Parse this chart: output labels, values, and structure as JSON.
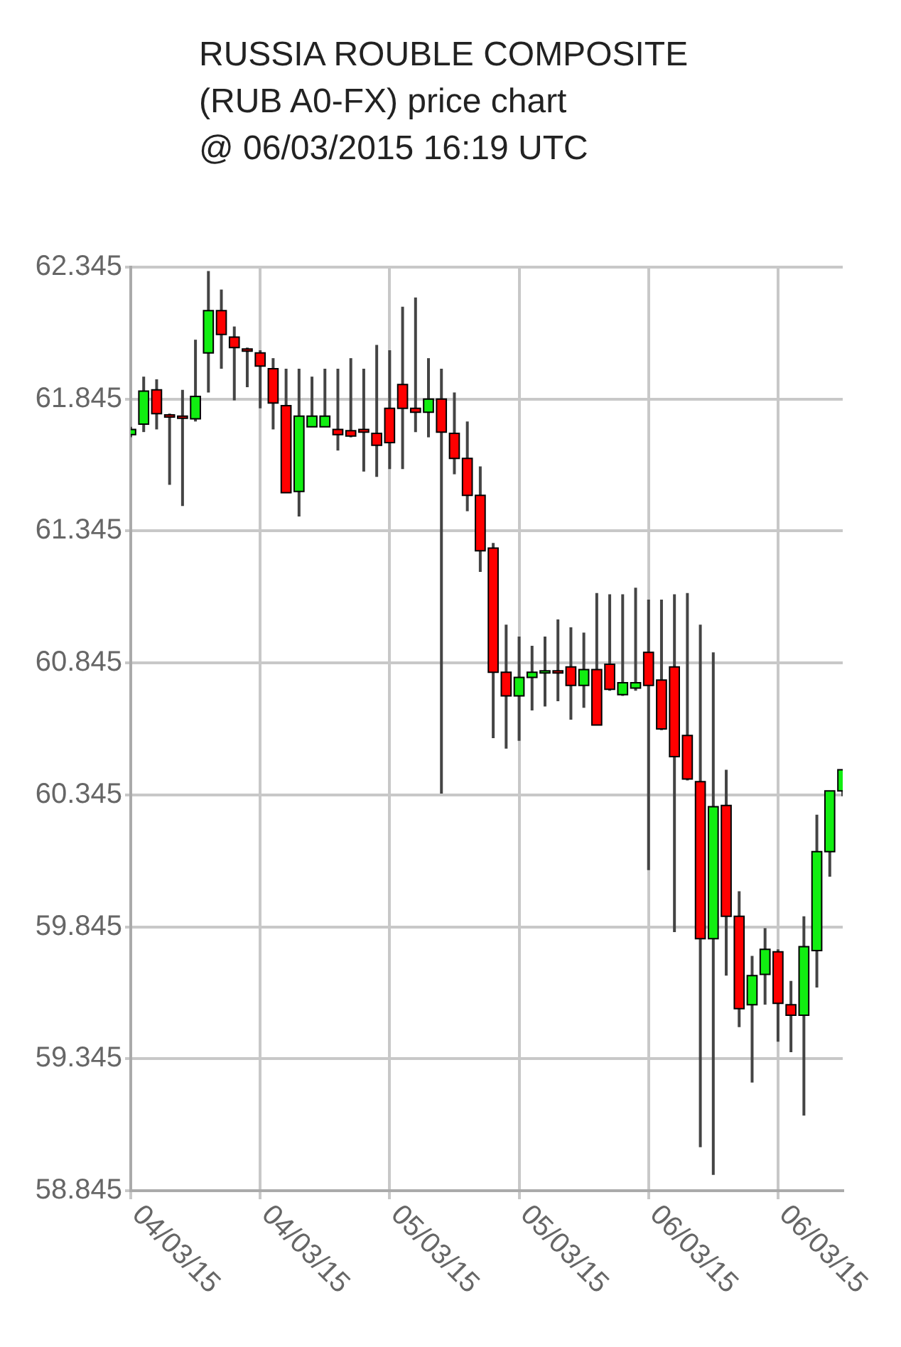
{
  "chart_data": {
    "type": "candlestick",
    "title": "RUSSIA ROUBLE COMPOSITE\n(RUB A0-FX) price chart\n@ 06/03/2015 16:19 UTC",
    "x": [
      "2015-03-04T00:00",
      "2015-03-04T01:12",
      "2015-03-04T02:24",
      "2015-03-04T03:36",
      "2015-03-04T04:48",
      "2015-03-04T06:00",
      "2015-03-04T07:12",
      "2015-03-04T08:24",
      "2015-03-04T09:36",
      "2015-03-04T10:48",
      "2015-03-04T12:00",
      "2015-03-04T13:12",
      "2015-03-04T14:24",
      "2015-03-04T15:36",
      "2015-03-04T16:48",
      "2015-03-04T18:00",
      "2015-03-04T19:12",
      "2015-03-04T20:24",
      "2015-03-04T21:36",
      "2015-03-04T22:48",
      "2015-03-05T00:00",
      "2015-03-05T01:12",
      "2015-03-05T02:24",
      "2015-03-05T03:36",
      "2015-03-05T04:48",
      "2015-03-05T06:00",
      "2015-03-05T07:12",
      "2015-03-05T08:24",
      "2015-03-05T09:36",
      "2015-03-05T10:48",
      "2015-03-05T12:00",
      "2015-03-05T13:12",
      "2015-03-05T14:24",
      "2015-03-05T15:36",
      "2015-03-05T16:48",
      "2015-03-05T18:00",
      "2015-03-05T19:12",
      "2015-03-05T20:24",
      "2015-03-05T21:36",
      "2015-03-05T22:48",
      "2015-03-06T00:00",
      "2015-03-06T01:12",
      "2015-03-06T02:24",
      "2015-03-06T03:36",
      "2015-03-06T04:48",
      "2015-03-06T06:00",
      "2015-03-06T07:12",
      "2015-03-06T08:24",
      "2015-03-06T09:36",
      "2015-03-06T10:48",
      "2015-03-06T12:00",
      "2015-03-06T13:12",
      "2015-03-06T14:24",
      "2015-03-06T15:36",
      "2015-03-06T16:48",
      "2015-03-06T18:00"
    ],
    "ohlc": [
      [
        61.71,
        61.74,
        61.7,
        61.73
      ],
      [
        61.75,
        61.93,
        61.72,
        61.875
      ],
      [
        61.88,
        61.92,
        61.73,
        61.79
      ],
      [
        61.785,
        61.79,
        61.52,
        61.78
      ],
      [
        61.78,
        61.88,
        61.44,
        61.775
      ],
      [
        61.77,
        62.07,
        61.76,
        61.855
      ],
      [
        62.02,
        62.33,
        61.87,
        62.18
      ],
      [
        62.18,
        62.26,
        61.96,
        62.09
      ],
      [
        62.08,
        62.12,
        61.84,
        62.04
      ],
      [
        62.035,
        62.04,
        61.89,
        62.03
      ],
      [
        62.02,
        62.03,
        61.81,
        61.97
      ],
      [
        61.96,
        62.0,
        61.73,
        61.83
      ],
      [
        61.82,
        61.96,
        61.49,
        61.49
      ],
      [
        61.495,
        61.96,
        61.4,
        61.78
      ],
      [
        61.74,
        61.93,
        61.74,
        61.78
      ],
      [
        61.74,
        61.96,
        61.74,
        61.78
      ],
      [
        61.73,
        61.96,
        61.65,
        61.71
      ],
      [
        61.725,
        62.0,
        61.7,
        61.705
      ],
      [
        61.73,
        61.96,
        61.57,
        61.72
      ],
      [
        61.715,
        62.05,
        61.55,
        61.67
      ],
      [
        61.81,
        62.03,
        61.58,
        61.68
      ],
      [
        61.9,
        62.195,
        61.58,
        61.81
      ],
      [
        61.81,
        62.23,
        61.72,
        61.795
      ],
      [
        61.795,
        62.0,
        61.7,
        61.845
      ],
      [
        61.845,
        61.96,
        60.35,
        61.72
      ],
      [
        61.715,
        61.87,
        61.56,
        61.62
      ],
      [
        61.62,
        61.76,
        61.42,
        61.48
      ],
      [
        61.48,
        61.59,
        61.19,
        61.27
      ],
      [
        61.28,
        61.3,
        60.56,
        60.81
      ],
      [
        60.81,
        60.99,
        60.52,
        60.72
      ],
      [
        60.72,
        60.945,
        60.55,
        60.79
      ],
      [
        60.79,
        60.91,
        60.665,
        60.81
      ],
      [
        60.81,
        60.945,
        60.68,
        60.815
      ],
      [
        60.815,
        61.01,
        60.7,
        60.81
      ],
      [
        60.83,
        60.98,
        60.63,
        60.76
      ],
      [
        60.76,
        60.96,
        60.675,
        60.82
      ],
      [
        60.82,
        61.11,
        60.61,
        60.61
      ],
      [
        60.84,
        61.105,
        60.74,
        60.745
      ],
      [
        60.725,
        61.105,
        60.72,
        60.77
      ],
      [
        60.75,
        61.13,
        60.74,
        60.77
      ],
      [
        60.885,
        61.085,
        60.06,
        60.76
      ],
      [
        60.78,
        61.085,
        60.59,
        60.595
      ],
      [
        60.83,
        61.105,
        59.825,
        60.49
      ],
      [
        60.57,
        61.11,
        60.4,
        60.405
      ],
      [
        60.395,
        60.99,
        59.01,
        59.8
      ],
      [
        59.8,
        60.885,
        58.905,
        60.3
      ],
      [
        60.305,
        60.44,
        59.66,
        59.885
      ],
      [
        59.885,
        59.98,
        59.465,
        59.535
      ],
      [
        59.55,
        59.735,
        59.255,
        59.66
      ],
      [
        59.665,
        59.84,
        59.55,
        59.76
      ],
      [
        59.75,
        59.76,
        59.41,
        59.555
      ],
      [
        59.55,
        59.64,
        59.37,
        59.51
      ],
      [
        59.51,
        59.885,
        59.13,
        59.77
      ],
      [
        59.755,
        60.27,
        59.615,
        60.13
      ],
      [
        60.13,
        60.36,
        60.035,
        60.36
      ],
      [
        60.36,
        60.44,
        60.34,
        60.44
      ]
    ],
    "colors": [
      "#11ee11",
      "#11ee11",
      "#ff0000",
      "#ff0000",
      "#ff0000",
      "#11ee11",
      "#11ee11",
      "#ff0000",
      "#ff0000",
      "#ff0000",
      "#ff0000",
      "#ff0000",
      "#ff0000",
      "#11ee11",
      "#11ee11",
      "#11ee11",
      "#ff0000",
      "#ff0000",
      "#ff0000",
      "#ff0000",
      "#ff0000",
      "#ff0000",
      "#ff0000",
      "#11ee11",
      "#ff0000",
      "#ff0000",
      "#ff0000",
      "#ff0000",
      "#ff0000",
      "#ff0000",
      "#11ee11",
      "#11ee11",
      "#11ee11",
      "#ff0000",
      "#ff0000",
      "#11ee11",
      "#ff0000",
      "#ff0000",
      "#11ee11",
      "#11ee11",
      "#ff0000",
      "#ff0000",
      "#ff0000",
      "#ff0000",
      "#ff0000",
      "#11ee11",
      "#ff0000",
      "#ff0000",
      "#11ee11",
      "#11ee11",
      "#ff0000",
      "#ff0000",
      "#11ee11",
      "#11ee11",
      "#11ee11",
      "#11ee11"
    ],
    "xlim": [
      "2015-03-04T00:00",
      "2015-03-06T18:00"
    ],
    "xticks": [
      {
        "value": "2015-03-04T00:00",
        "label": "04/03/15"
      },
      {
        "value": "2015-03-04T12:00",
        "label": "04/03/15"
      },
      {
        "value": "2015-03-05T00:00",
        "label": "05/03/15"
      },
      {
        "value": "2015-03-05T12:00",
        "label": "05/03/15"
      },
      {
        "value": "2015-03-06T00:00",
        "label": "06/03/15"
      },
      {
        "value": "2015-03-06T12:00",
        "label": "06/03/15"
      }
    ],
    "ylim": [
      58.845,
      62.345
    ],
    "yticks": [
      {
        "value": 58.845,
        "label": "58.845"
      },
      {
        "value": 59.345,
        "label": "59.345"
      },
      {
        "value": 59.845,
        "label": "59.845"
      },
      {
        "value": 60.345,
        "label": "60.345"
      },
      {
        "value": 60.845,
        "label": "60.845"
      },
      {
        "value": 61.345,
        "label": "61.345"
      },
      {
        "value": 61.845,
        "label": "61.845"
      },
      {
        "value": 62.345,
        "label": "62.345"
      }
    ],
    "grid": true
  }
}
